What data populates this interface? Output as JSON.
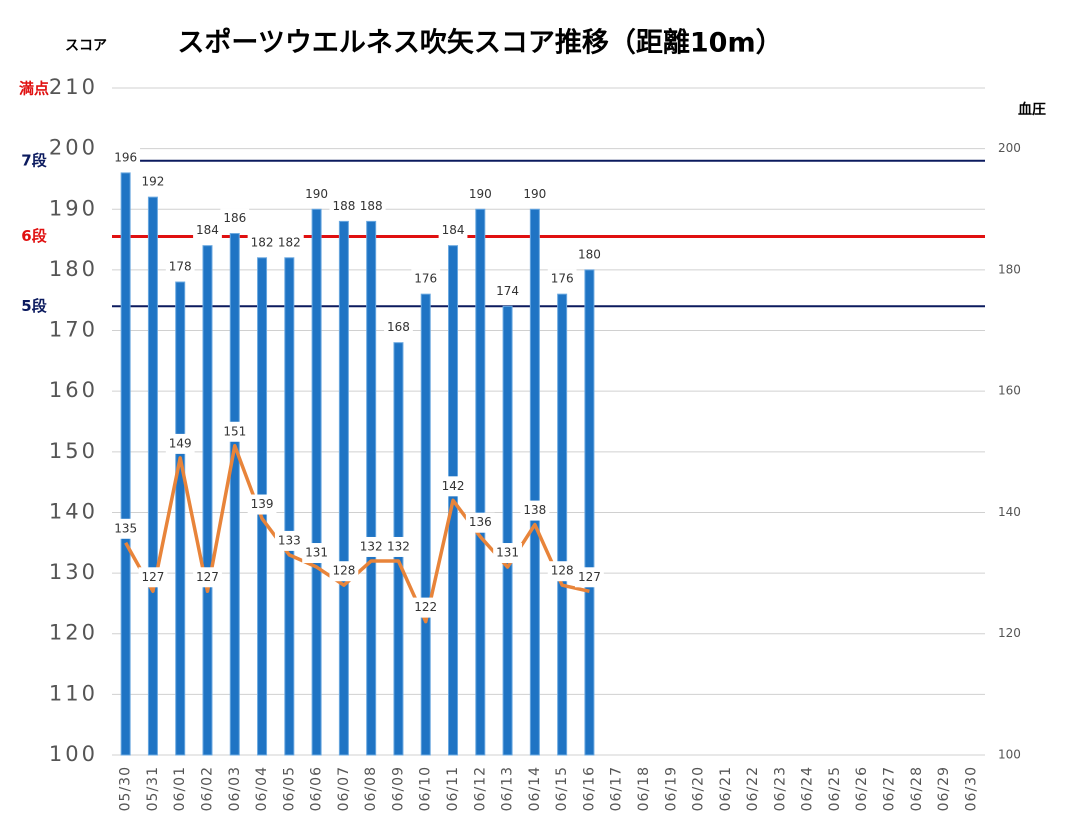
{
  "chart_data": {
    "type": "bar_line",
    "title": "スポーツウエルネス吹矢スコア推移（距離10m）",
    "y_label": "スコア",
    "y2_label": "血圧",
    "categories": [
      "05/30",
      "05/31",
      "06/01",
      "06/02",
      "06/03",
      "06/04",
      "06/05",
      "06/06",
      "06/07",
      "06/08",
      "06/09",
      "06/10",
      "06/11",
      "06/12",
      "06/13",
      "06/14",
      "06/15",
      "06/16",
      "06/17",
      "06/18",
      "06/19",
      "06/20",
      "06/21",
      "06/22",
      "06/23",
      "06/24",
      "06/25",
      "06/26",
      "06/27",
      "06/28",
      "06/29",
      "06/30"
    ],
    "series": [
      {
        "type": "bar",
        "color": "#1f74c4",
        "values": [
          196,
          192,
          178,
          184,
          186,
          182,
          182,
          190,
          188,
          188,
          168,
          176,
          184,
          190,
          174,
          190,
          176,
          180,
          null,
          null,
          null,
          null,
          null,
          null,
          null,
          null,
          null,
          null,
          null,
          null,
          null,
          null
        ]
      },
      {
        "type": "line",
        "axis": "y2",
        "color": "#e8843a",
        "values": [
          135,
          127,
          149,
          127,
          151,
          139,
          133,
          131,
          128,
          132,
          132,
          122,
          142,
          136,
          131,
          138,
          128,
          127,
          null,
          null,
          null,
          null,
          null,
          null,
          null,
          null,
          null,
          null,
          null,
          null,
          null,
          null
        ]
      }
    ],
    "ylim": [
      100,
      210
    ],
    "yticks": [
      100,
      110,
      120,
      130,
      140,
      150,
      160,
      170,
      180,
      190,
      200,
      210
    ],
    "y2lim": [
      100,
      210
    ],
    "y2ticks": [
      100,
      120,
      140,
      160,
      180,
      200
    ],
    "grid": true,
    "reference_lines": [
      {
        "label": "満点",
        "value": 210,
        "color": "#e01010",
        "line": false
      },
      {
        "label": "7段",
        "value": 198,
        "color": "#0b1a5e",
        "line": true
      },
      {
        "label": "6段",
        "value": 185.5,
        "color": "#e01010",
        "line": true
      },
      {
        "label": "5段",
        "value": 174,
        "color": "#0b1a5e",
        "line": true
      }
    ]
  }
}
